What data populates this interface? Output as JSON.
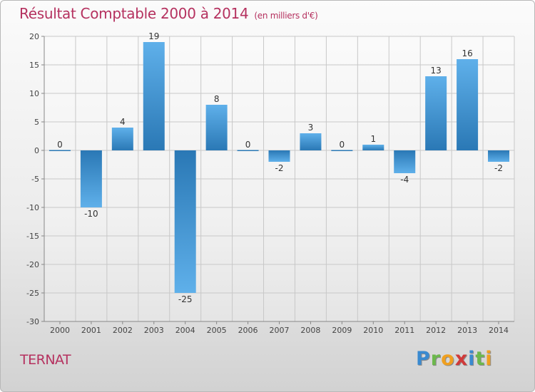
{
  "chart_data": {
    "type": "bar",
    "title": "Résultat Comptable 2000 à 2014",
    "subtitle": "(en milliers d'€)",
    "categories": [
      "2000",
      "2001",
      "2002",
      "2003",
      "2004",
      "2005",
      "2006",
      "2007",
      "2008",
      "2009",
      "2010",
      "2011",
      "2012",
      "2013",
      "2014"
    ],
    "values": [
      0,
      -10,
      4,
      19,
      -25,
      8,
      0,
      -2,
      3,
      0,
      1,
      -4,
      13,
      16,
      -2
    ],
    "ylim": [
      -30,
      20
    ],
    "yticks": [
      20,
      15,
      10,
      5,
      0,
      -5,
      -10,
      -15,
      -20,
      -25,
      -30
    ],
    "grid": true,
    "xlabel": "",
    "ylabel": ""
  },
  "footer": {
    "town": "TERNAT",
    "brand_letters": [
      "P",
      "r",
      "o",
      "x",
      "i",
      "t",
      "i"
    ]
  },
  "colors": {
    "title": "#b5315f",
    "bar_dark": "#2a78b5",
    "bar_light": "#5fb0ea",
    "grid": "#c8c8c8",
    "axis": "#888888",
    "brand": [
      "#3a8ad0",
      "#6cb84c",
      "#f0a020",
      "#d03a3a",
      "#3a8ad0",
      "#6cb84c",
      "#f0a020"
    ]
  }
}
